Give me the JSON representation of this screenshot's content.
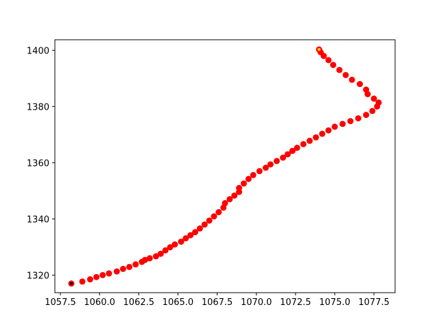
{
  "chart_data": {
    "type": "scatter",
    "title": "",
    "xlabel": "",
    "ylabel": "",
    "xlim": [
      1057.15,
      1078.85
    ],
    "ylim": [
      1313.75,
      1403.75
    ],
    "x_ticks": [
      1057.5,
      1060.0,
      1062.5,
      1065.0,
      1067.5,
      1070.0,
      1072.5,
      1075.0,
      1077.5
    ],
    "x_tick_labels": [
      "1057.5",
      "1060.0",
      "1062.5",
      "1065.0",
      "1067.5",
      "1070.0",
      "1072.5",
      "1075.0",
      "1077.5"
    ],
    "y_ticks": [
      1320,
      1340,
      1360,
      1380,
      1400
    ],
    "y_tick_labels": [
      "1320",
      "1340",
      "1360",
      "1380",
      "1400"
    ],
    "grid": false,
    "series": [
      {
        "color": "#ff0000",
        "marker": "circle",
        "points": [
          [
            1058.2,
            1317.0
          ],
          [
            1058.9,
            1317.7
          ],
          [
            1059.4,
            1318.5
          ],
          [
            1059.8,
            1319.3
          ],
          [
            1060.2,
            1320.0
          ],
          [
            1060.6,
            1320.6
          ],
          [
            1061.1,
            1321.3
          ],
          [
            1061.5,
            1322.2
          ],
          [
            1061.9,
            1322.9
          ],
          [
            1062.3,
            1323.8
          ],
          [
            1062.7,
            1324.7
          ],
          [
            1062.9,
            1325.4
          ],
          [
            1063.2,
            1326.0
          ],
          [
            1063.6,
            1326.7
          ],
          [
            1063.9,
            1327.6
          ],
          [
            1064.2,
            1328.8
          ],
          [
            1064.5,
            1329.9
          ],
          [
            1064.8,
            1330.9
          ],
          [
            1065.2,
            1331.9
          ],
          [
            1065.5,
            1333.1
          ],
          [
            1065.8,
            1334.2
          ],
          [
            1066.1,
            1335.3
          ],
          [
            1066.4,
            1336.6
          ],
          [
            1066.7,
            1338.0
          ],
          [
            1067.0,
            1339.4
          ],
          [
            1067.3,
            1340.9
          ],
          [
            1067.6,
            1342.4
          ],
          [
            1067.9,
            1344.0
          ],
          [
            1068.0,
            1345.6
          ],
          [
            1068.3,
            1347.0
          ],
          [
            1068.6,
            1348.3
          ],
          [
            1068.9,
            1349.6
          ],
          [
            1068.9,
            1351.0
          ],
          [
            1069.2,
            1352.6
          ],
          [
            1069.5,
            1354.2
          ],
          [
            1069.8,
            1355.6
          ],
          [
            1070.2,
            1357.0
          ],
          [
            1070.6,
            1358.2
          ],
          [
            1070.9,
            1359.4
          ],
          [
            1071.3,
            1360.6
          ],
          [
            1071.7,
            1361.8
          ],
          [
            1072.0,
            1363.0
          ],
          [
            1072.3,
            1364.2
          ],
          [
            1072.6,
            1365.3
          ],
          [
            1073.0,
            1366.6
          ],
          [
            1073.4,
            1367.8
          ],
          [
            1073.8,
            1369.0
          ],
          [
            1074.2,
            1370.3
          ],
          [
            1074.6,
            1371.5
          ],
          [
            1075.0,
            1372.8
          ],
          [
            1075.5,
            1373.8
          ],
          [
            1076.0,
            1374.8
          ],
          [
            1076.5,
            1375.8
          ],
          [
            1077.0,
            1377.0
          ],
          [
            1077.4,
            1378.4
          ],
          [
            1077.7,
            1380.0
          ],
          [
            1077.8,
            1381.4
          ],
          [
            1077.5,
            1382.8
          ],
          [
            1077.1,
            1384.4
          ],
          [
            1077.0,
            1386.0
          ],
          [
            1076.6,
            1388.0
          ],
          [
            1076.1,
            1389.5
          ],
          [
            1075.7,
            1391.2
          ],
          [
            1075.3,
            1393.0
          ],
          [
            1074.9,
            1394.8
          ],
          [
            1074.6,
            1396.5
          ],
          [
            1074.3,
            1398.0
          ],
          [
            1074.1,
            1399.3
          ],
          [
            1074.0,
            1400.3
          ]
        ]
      }
    ],
    "start_marker": {
      "point": [
        1058.2,
        1317.0
      ],
      "color": "#000000"
    },
    "end_marker": {
      "point": [
        1074.0,
        1400.3
      ],
      "color": "#ffd700"
    }
  }
}
